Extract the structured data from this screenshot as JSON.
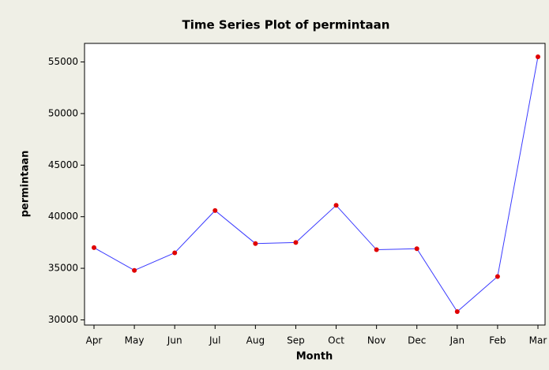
{
  "chart_data": {
    "type": "line",
    "title": "Time Series Plot of permintaan",
    "x_label": "Month",
    "y_label": "permintaan",
    "categories": [
      "Apr",
      "May",
      "Jun",
      "Jul",
      "Aug",
      "Sep",
      "Oct",
      "Nov",
      "Dec",
      "Jan",
      "Feb",
      "Mar"
    ],
    "series": [
      {
        "name": "permintaan",
        "line_color": "#3b3bff",
        "marker_color": "#e00000",
        "values": [
          37000,
          34800,
          36500,
          40600,
          37400,
          37500,
          41100,
          36800,
          36900,
          30800,
          34200,
          55500
        ]
      }
    ],
    "ylim": [
      29500,
      56800
    ],
    "yticks": [
      30000,
      35000,
      40000,
      45000,
      50000,
      55000
    ],
    "grid": false
  }
}
